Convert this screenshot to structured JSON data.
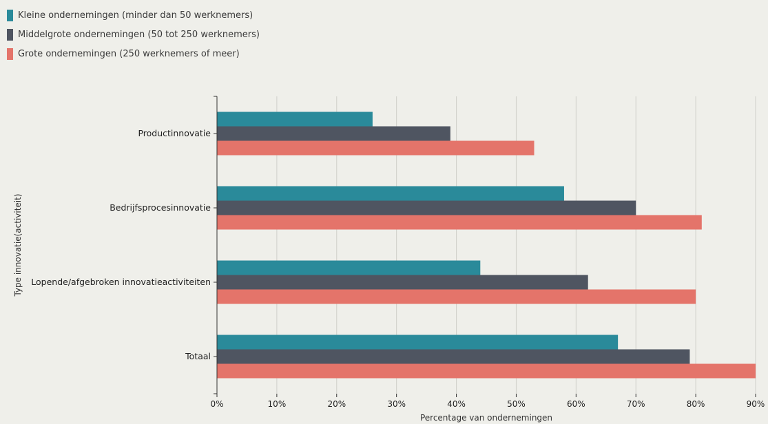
{
  "chart_data": {
    "type": "bar",
    "orientation": "horizontal",
    "categories": [
      "Productinnovatie",
      "Bedrijfsprocesinnovatie",
      "Lopende/afgebroken innovatieactiviteiten",
      "Totaal"
    ],
    "series": [
      {
        "name": "Kleine ondernemingen (minder dan 50 werknemers)",
        "color": "#2a8a9a",
        "values": [
          26,
          58,
          44,
          67
        ]
      },
      {
        "name": "Middelgrote ondernemingen (50 tot 250 werknemers)",
        "color": "#4f5561",
        "values": [
          39,
          70,
          62,
          79
        ]
      },
      {
        "name": "Grote ondernemingen (250 werknemers of meer)",
        "color": "#e4746a",
        "values": [
          53,
          81,
          80,
          90
        ]
      }
    ],
    "xlabel": "Percentage van ondernemingen",
    "ylabel": "Type innovatie(activiteit)",
    "xlim": [
      0,
      90
    ],
    "xticks": [
      0,
      10,
      20,
      30,
      40,
      50,
      60,
      70,
      80,
      90
    ],
    "xtick_labels": [
      "0%",
      "10%",
      "20%",
      "30%",
      "40%",
      "50%",
      "60%",
      "70%",
      "80%",
      "90%"
    ],
    "grid": "vertical",
    "legend_position": "top-left"
  }
}
